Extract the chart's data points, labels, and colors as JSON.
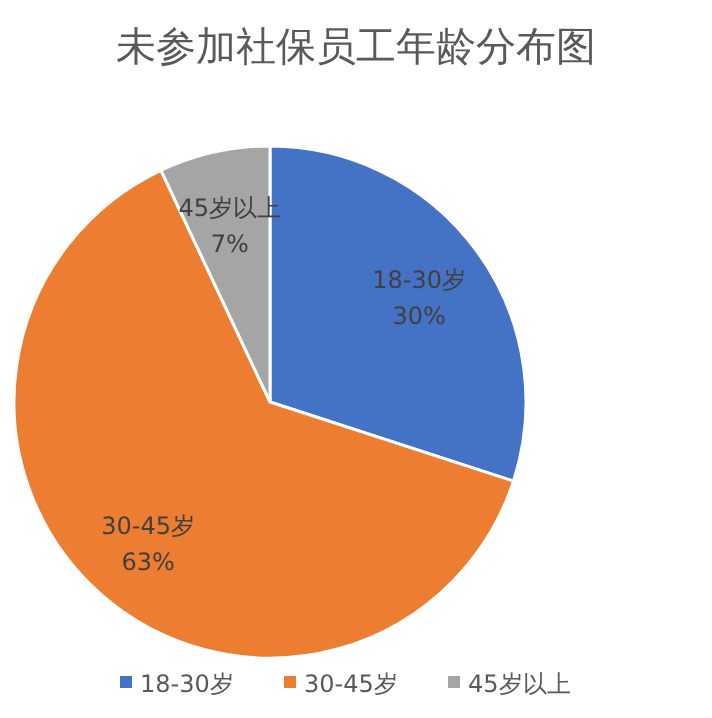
{
  "chart_data": {
    "type": "pie",
    "title": "未参加社保员工年龄分布图",
    "categories": [
      "18-30岁",
      "30-45岁",
      "45岁以上"
    ],
    "values": [
      30,
      63,
      7
    ],
    "colors": [
      "#4472c4",
      "#ed7d31",
      "#a5a5a5"
    ],
    "value_labels": [
      "30%",
      "63%",
      "7%"
    ],
    "legend": "bottom"
  }
}
